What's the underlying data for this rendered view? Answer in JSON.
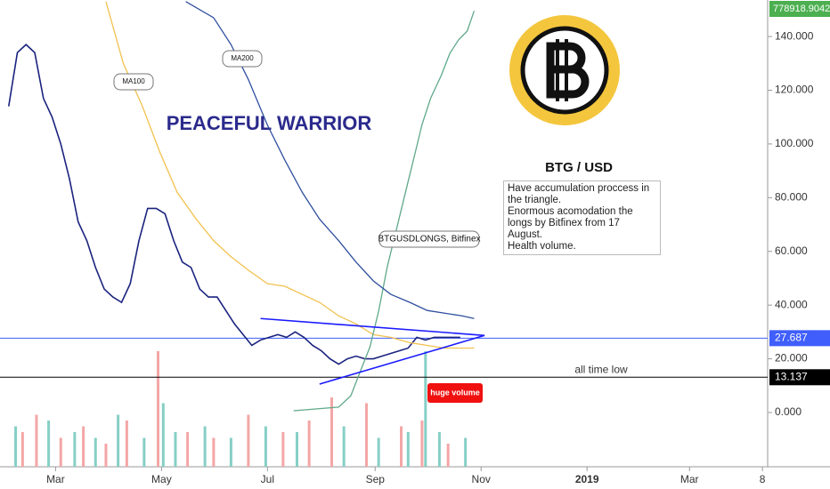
{
  "chart_data": {
    "type": "line",
    "title": "BTG / USD",
    "headline": "PEACEFUL WARRIOR",
    "note": [
      "Have accumulation proccess in the triangle.",
      "Enormous acomodation the longs by Bitfinex from 17 August.",
      "Health volume."
    ],
    "volume_label": "huge volume",
    "low_label": "all time low",
    "xlim": [
      27,
      469
    ],
    "xticks": [
      {
        "value": 59,
        "label": "Mar"
      },
      {
        "value": 120,
        "label": "May"
      },
      {
        "value": 181,
        "label": "Jul"
      },
      {
        "value": 243,
        "label": "Sep"
      },
      {
        "value": 304,
        "label": "Nov"
      },
      {
        "value": 365,
        "label": "2019"
      },
      {
        "value": 424,
        "label": "Mar"
      },
      {
        "value": 466,
        "label": "8"
      }
    ],
    "ylim": [
      -20.2,
      153.6
    ],
    "yticks": [
      {
        "value": 0,
        "label": "0.000"
      },
      {
        "value": 20,
        "label": "20.000"
      },
      {
        "value": 40,
        "label": "40.000"
      },
      {
        "value": 60,
        "label": "60.000"
      },
      {
        "value": 80,
        "label": "80.000"
      },
      {
        "value": 100,
        "label": "100.000"
      },
      {
        "value": 120,
        "label": "120.000"
      },
      {
        "value": 140,
        "label": "140.000"
      }
    ],
    "y2lim": [
      -100000,
      800000
    ],
    "levels": [
      {
        "value": 27.687,
        "color": "#3f5efb"
      },
      {
        "value": 13.137,
        "color": "#000000"
      }
    ],
    "trendlines": [
      {
        "x": [
          177,
          306
        ],
        "values": [
          35,
          28.7
        ],
        "color": "#1a1aff"
      },
      {
        "x": [
          211,
          306
        ],
        "values": [
          10.6,
          28.7
        ],
        "color": "#1a1aff"
      }
    ],
    "series": [
      {
        "color": "#1a237e",
        "x": [
          32,
          37,
          42,
          47,
          52,
          57,
          62,
          67,
          72,
          77,
          82,
          87,
          92,
          97,
          102,
          107,
          112,
          117,
          122,
          127,
          132,
          137,
          142,
          147,
          152,
          157,
          162,
          167,
          172,
          177,
          182,
          187,
          192,
          197,
          202,
          207,
          212,
          217,
          222,
          227,
          232,
          237,
          242,
          247,
          252,
          257,
          262,
          267,
          272,
          277,
          282,
          287,
          292
        ],
        "values": [
          114,
          134,
          137,
          134,
          117,
          110,
          100,
          87,
          71,
          64,
          54,
          46,
          43,
          41,
          48,
          64,
          76,
          76,
          74,
          64,
          56,
          54,
          46,
          43,
          43,
          38,
          33,
          29,
          25,
          27,
          28,
          29,
          28,
          30,
          28,
          25,
          23,
          20,
          18,
          20,
          21,
          20,
          20,
          21,
          22,
          23,
          24,
          28,
          27,
          28,
          28,
          28,
          28
        ]
      },
      {
        "name": "MA100",
        "color": "#f2c14e",
        "x": [
          88,
          98,
          109,
          119,
          129,
          140,
          150,
          160,
          170,
          181,
          191,
          201,
          211,
          222,
          232,
          242,
          252,
          263,
          273,
          283,
          293,
          300
        ],
        "values": [
          153,
          130,
          114,
          97,
          82,
          72,
          64,
          58,
          53,
          48,
          47,
          44,
          41,
          36,
          33,
          29,
          28,
          26,
          25,
          24,
          24,
          24
        ]
      },
      {
        "name": "BTGUSDLONGS, Bitfinex",
        "color": "#5fa88a",
        "axis": "y2",
        "x": [
          196,
          222,
          229,
          234,
          240,
          245,
          250,
          255,
          260,
          265,
          270,
          275,
          281,
          286,
          291,
          296,
          300
        ],
        "values": [
          8000,
          15000,
          37000,
          80000,
          131000,
          200000,
          286000,
          354000,
          423000,
          491000,
          560000,
          611000,
          654000,
          697000,
          723000,
          740000,
          778918.9042
        ]
      },
      {
        "name": "MA200",
        "color": "#2f4f9e",
        "x": [
          134,
          150,
          160,
          170,
          181,
          191,
          201,
          211,
          222,
          232,
          242,
          252,
          263,
          273,
          283,
          293,
          300
        ],
        "values": [
          153,
          147,
          137,
          124,
          107,
          94,
          82,
          72,
          64,
          56,
          49,
          44,
          41,
          38,
          37,
          36,
          35
        ]
      }
    ],
    "vlim": [
      0,
      100
    ],
    "volume": [
      {
        "color": "#f4a6a6",
        "x": [
          40,
          48,
          62,
          75,
          88,
          100,
          118,
          135,
          150,
          170,
          190,
          205,
          218,
          238,
          258,
          270,
          285
        ],
        "values": [
          30,
          45,
          25,
          35,
          20,
          40,
          100,
          30,
          25,
          45,
          30,
          40,
          60,
          55,
          35,
          40,
          20
        ]
      },
      {
        "color": "#86cfc6",
        "x": [
          36,
          55,
          70,
          82,
          95,
          110,
          121,
          128,
          145,
          160,
          180,
          198,
          225,
          245,
          262,
          272,
          280,
          295
        ],
        "values": [
          35,
          40,
          30,
          25,
          45,
          25,
          55,
          30,
          35,
          25,
          35,
          30,
          35,
          25,
          30,
          100,
          30,
          25
        ]
      }
    ]
  }
}
